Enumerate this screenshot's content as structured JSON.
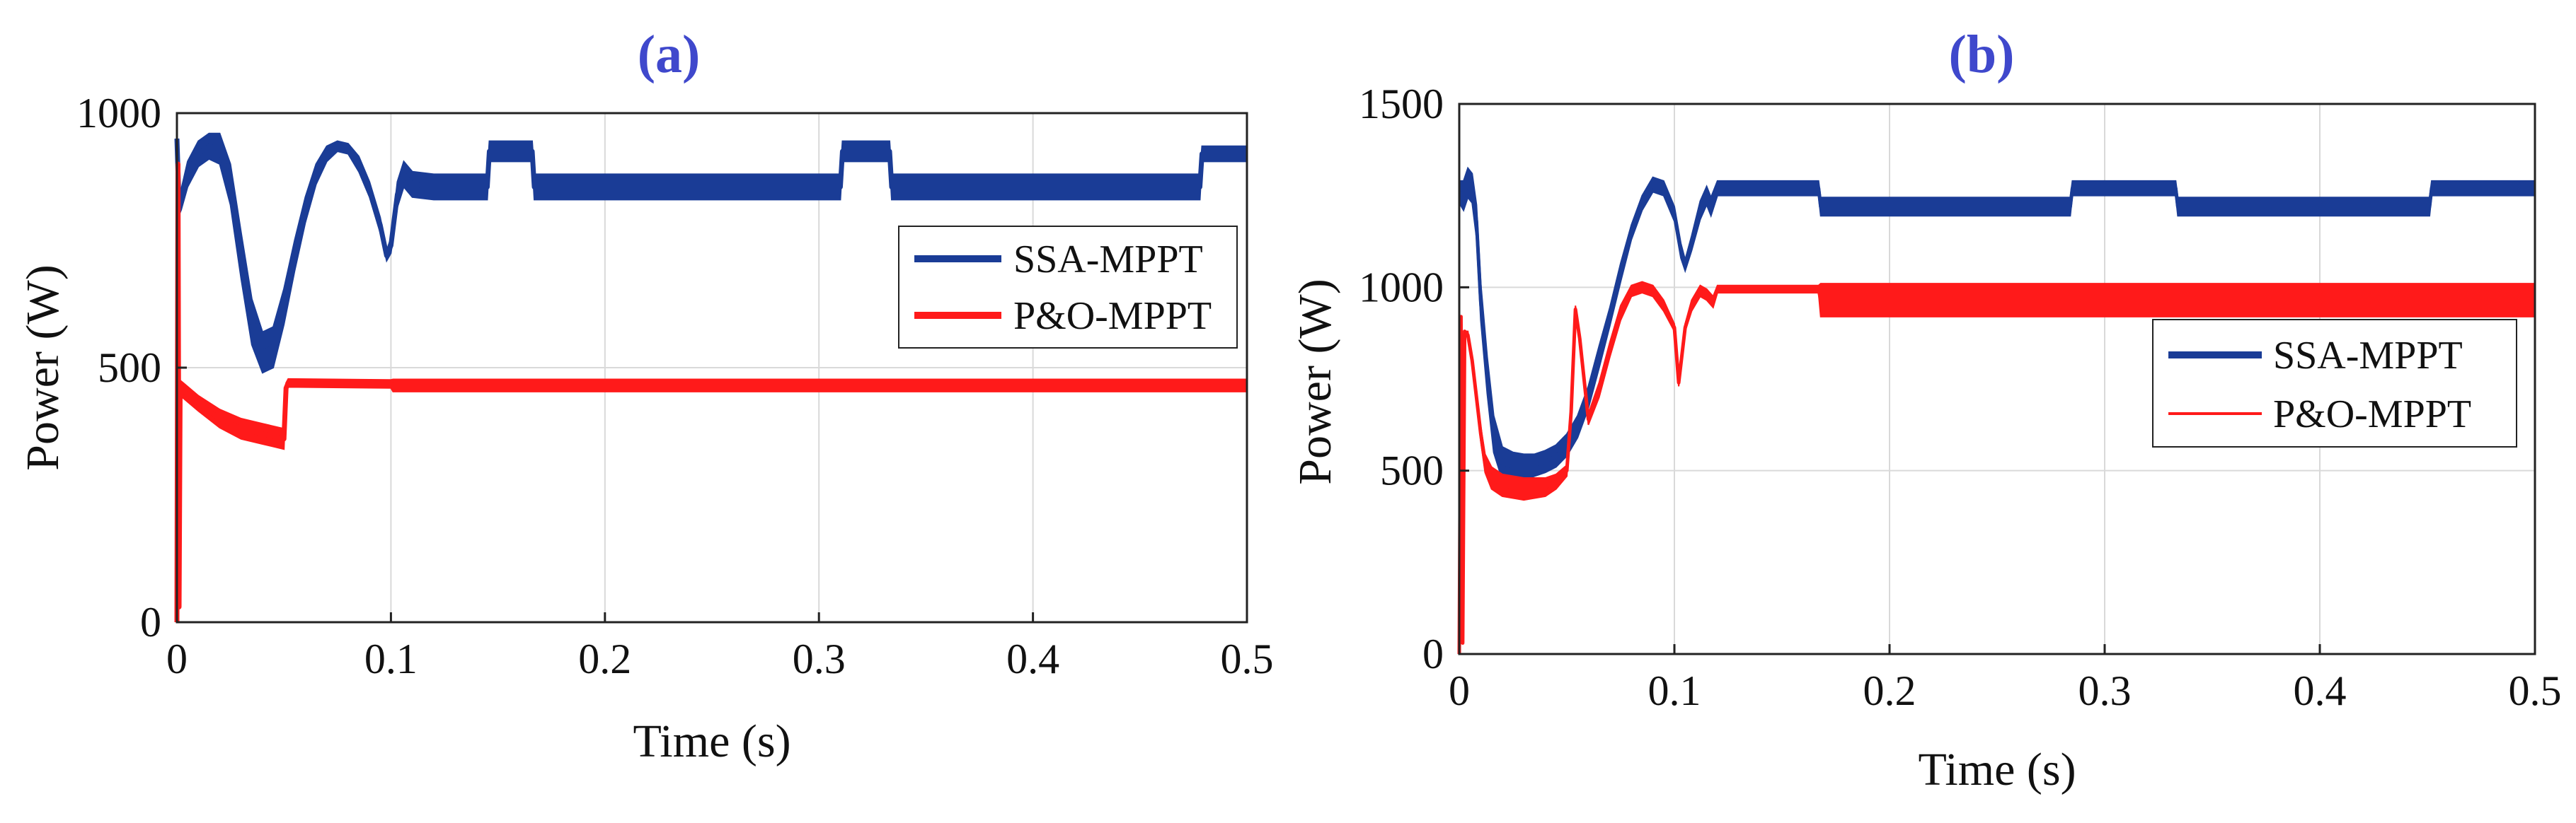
{
  "title_color": "#3f48cc",
  "chart_data": [
    {
      "type": "line",
      "panel_label": "(a)",
      "xlabel": "Time (s)",
      "ylabel": "Power (W)",
      "xlim": [
        0,
        0.5
      ],
      "ylim": [
        0,
        1000
      ],
      "xticks": [
        0,
        0.1,
        0.2,
        0.3,
        0.4,
        0.5
      ],
      "xtick_labels": [
        "0",
        "0.1",
        "0.2",
        "0.3",
        "0.4",
        "0.5"
      ],
      "yticks": [
        0,
        500,
        1000
      ],
      "ytick_labels": [
        "0",
        "500",
        "1000"
      ],
      "grid": true,
      "legend_position": "middle-right",
      "series": [
        {
          "name": "SSA-MPPT",
          "color": "#1a3c96",
          "x": [
            0,
            0.001,
            0.002,
            0.005,
            0.01,
            0.015,
            0.02,
            0.025,
            0.03,
            0.035,
            0.04,
            0.045,
            0.05,
            0.055,
            0.06,
            0.065,
            0.07,
            0.075,
            0.08,
            0.085,
            0.09,
            0.095,
            0.098,
            0.1,
            0.103,
            0.106,
            0.11,
            0.12,
            0.145,
            0.146,
            0.166,
            0.167,
            0.31,
            0.311,
            0.333,
            0.334,
            0.478,
            0.479,
            0.5
          ],
          "y": [
            950,
            820,
            830,
            880,
            920,
            935,
            930,
            860,
            720,
            590,
            530,
            540,
            620,
            720,
            810,
            880,
            920,
            935,
            930,
            900,
            850,
            780,
            720,
            740,
            840,
            880,
            860,
            855,
            855,
            925,
            925,
            855,
            855,
            925,
            925,
            855,
            855,
            920,
            920
          ],
          "band": [
            0,
            20,
            20,
            25,
            25,
            25,
            30,
            40,
            45,
            45,
            40,
            40,
            35,
            30,
            25,
            20,
            15,
            10,
            10,
            15,
            15,
            15,
            10,
            15,
            25,
            25,
            25,
            25,
            25,
            20,
            20,
            25,
            25,
            20,
            20,
            25,
            25,
            15,
            15
          ]
        },
        {
          "name": "P&O-MPPT",
          "color": "#ff1a1a",
          "x": [
            0,
            0.0005,
            0.001,
            0.0015,
            0.003,
            0.01,
            0.02,
            0.03,
            0.04,
            0.05,
            0.051,
            0.052,
            0.1,
            0.101,
            0.5
          ],
          "y": [
            0,
            900,
            30,
            460,
            455,
            430,
            400,
            380,
            370,
            360,
            460,
            470,
            468,
            465,
            465
          ],
          "band": [
            0,
            0,
            0,
            15,
            15,
            15,
            18,
            20,
            20,
            20,
            10,
            8,
            8,
            12,
            12
          ]
        }
      ]
    },
    {
      "type": "line",
      "panel_label": "(b)",
      "xlabel": "Time (s)",
      "ylabel": "Power (W)",
      "xlim": [
        0,
        0.5
      ],
      "ylim": [
        0,
        1500
      ],
      "xticks": [
        0,
        0.1,
        0.2,
        0.3,
        0.4,
        0.5
      ],
      "xtick_labels": [
        "0",
        "0.1",
        "0.2",
        "0.3",
        "0.4",
        "0.5"
      ],
      "yticks": [
        0,
        500,
        1000,
        1500
      ],
      "ytick_labels": [
        "0",
        "500",
        "1000",
        "1500"
      ],
      "grid": true,
      "legend_position": "middle-right",
      "series": [
        {
          "name": "SSA-MPPT",
          "color": "#1a3c96",
          "x": [
            0,
            0.002,
            0.004,
            0.006,
            0.008,
            0.01,
            0.013,
            0.016,
            0.02,
            0.025,
            0.03,
            0.035,
            0.04,
            0.045,
            0.05,
            0.055,
            0.06,
            0.065,
            0.07,
            0.075,
            0.08,
            0.085,
            0.09,
            0.095,
            0.1,
            0.103,
            0.105,
            0.108,
            0.112,
            0.115,
            0.117,
            0.12,
            0.167,
            0.168,
            0.284,
            0.285,
            0.333,
            0.334,
            0.451,
            0.452,
            0.5
          ],
          "y": [
            1260,
            1250,
            1285,
            1270,
            1180,
            960,
            760,
            600,
            520,
            510,
            510,
            515,
            525,
            540,
            570,
            620,
            700,
            810,
            920,
            1040,
            1150,
            1230,
            1280,
            1270,
            1200,
            1100,
            1060,
            1120,
            1210,
            1250,
            1220,
            1270,
            1270,
            1220,
            1220,
            1270,
            1270,
            1220,
            1220,
            1270,
            1270
          ],
          "band": [
            30,
            40,
            40,
            40,
            45,
            50,
            50,
            50,
            45,
            40,
            35,
            30,
            30,
            30,
            30,
            30,
            30,
            30,
            25,
            25,
            20,
            20,
            20,
            20,
            20,
            20,
            15,
            20,
            25,
            25,
            25,
            20,
            20,
            25,
            25,
            20,
            20,
            25,
            25,
            20,
            20
          ]
        },
        {
          "name": "P&O-MPPT",
          "color": "#ff1a1a",
          "x": [
            0,
            0.0008,
            0.0016,
            0.0025,
            0.004,
            0.006,
            0.008,
            0.01,
            0.012,
            0.015,
            0.02,
            0.03,
            0.04,
            0.045,
            0.05,
            0.052,
            0.054,
            0.056,
            0.06,
            0.065,
            0.07,
            0.075,
            0.08,
            0.085,
            0.09,
            0.095,
            0.1,
            0.102,
            0.105,
            0.108,
            0.112,
            0.115,
            0.118,
            0.12,
            0.167,
            0.168,
            0.5
          ],
          "y": [
            0,
            920,
            30,
            880,
            870,
            800,
            700,
            600,
            520,
            480,
            460,
            450,
            455,
            470,
            500,
            660,
            940,
            860,
            640,
            720,
            830,
            930,
            990,
            1000,
            990,
            950,
            890,
            740,
            890,
            950,
            990,
            980,
            960,
            995,
            995,
            965,
            965
          ],
          "band": [
            0,
            0,
            0,
            0,
            10,
            10,
            15,
            20,
            25,
            30,
            30,
            30,
            25,
            20,
            15,
            10,
            10,
            10,
            15,
            20,
            20,
            20,
            15,
            15,
            15,
            15,
            10,
            10,
            10,
            15,
            15,
            15,
            15,
            10,
            10,
            45,
            45
          ]
        }
      ]
    }
  ]
}
